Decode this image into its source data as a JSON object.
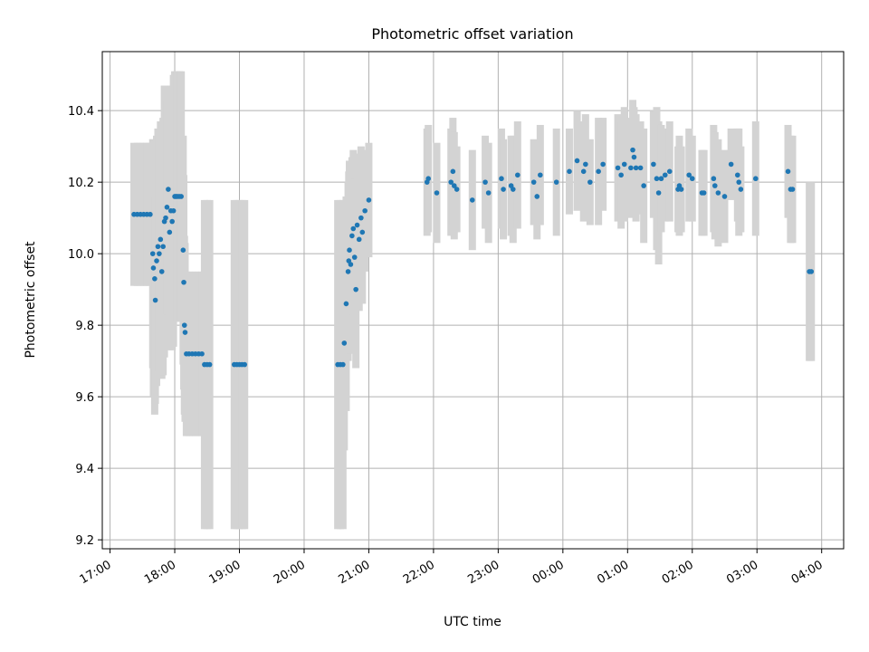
{
  "chart_data": {
    "type": "scatter",
    "title": "Photometric offset variation",
    "xlabel": "UTC time",
    "ylabel": "Photometric offset",
    "x_units": "hours since 17:00 UTC",
    "xlim": [
      -0.12,
      11.34
    ],
    "ylim": [
      9.175,
      10.565
    ],
    "xticks": [
      {
        "value": 0,
        "label": "17:00"
      },
      {
        "value": 1,
        "label": "18:00"
      },
      {
        "value": 2,
        "label": "19:00"
      },
      {
        "value": 3,
        "label": "20:00"
      },
      {
        "value": 4,
        "label": "21:00"
      },
      {
        "value": 5,
        "label": "22:00"
      },
      {
        "value": 6,
        "label": "23:00"
      },
      {
        "value": 7,
        "label": "00:00"
      },
      {
        "value": 8,
        "label": "01:00"
      },
      {
        "value": 9,
        "label": "02:00"
      },
      {
        "value": 10,
        "label": "03:00"
      },
      {
        "value": 11,
        "label": "04:00"
      }
    ],
    "yticks": [
      {
        "value": 9.2,
        "label": "9.2"
      },
      {
        "value": 9.4,
        "label": "9.4"
      },
      {
        "value": 9.6,
        "label": "9.6"
      },
      {
        "value": 9.8,
        "label": "9.8"
      },
      {
        "value": 10.0,
        "label": "10.0"
      },
      {
        "value": 10.2,
        "label": "10.2"
      },
      {
        "value": 10.4,
        "label": "10.4"
      }
    ],
    "grid": true,
    "colors": {
      "points": "#1f77b4",
      "errorbars": "#d3d3d3"
    },
    "series": [
      {
        "points": [
          {
            "x": 0.37,
            "y": 10.11,
            "err": 0.2
          },
          {
            "x": 0.42,
            "y": 10.11,
            "err": 0.2
          },
          {
            "x": 0.47,
            "y": 10.11,
            "err": 0.2
          },
          {
            "x": 0.52,
            "y": 10.11,
            "err": 0.2
          },
          {
            "x": 0.57,
            "y": 10.11,
            "err": 0.2
          },
          {
            "x": 0.62,
            "y": 10.11,
            "err": 0.2
          },
          {
            "x": 0.66,
            "y": 10.0,
            "err": 0.32
          },
          {
            "x": 0.67,
            "y": 9.96,
            "err": 0.36
          },
          {
            "x": 0.69,
            "y": 9.93,
            "err": 0.38
          },
          {
            "x": 0.7,
            "y": 9.87,
            "err": 0.29
          },
          {
            "x": 0.72,
            "y": 9.98,
            "err": 0.35
          },
          {
            "x": 0.74,
            "y": 10.02,
            "err": 0.33
          },
          {
            "x": 0.76,
            "y": 10.0,
            "err": 0.33
          },
          {
            "x": 0.78,
            "y": 10.04,
            "err": 0.33
          },
          {
            "x": 0.8,
            "y": 9.95,
            "err": 0.3
          },
          {
            "x": 0.82,
            "y": 10.02,
            "err": 0.36
          },
          {
            "x": 0.84,
            "y": 10.09,
            "err": 0.38
          },
          {
            "x": 0.86,
            "y": 10.1,
            "err": 0.35
          },
          {
            "x": 0.88,
            "y": 10.13,
            "err": 0.3
          },
          {
            "x": 0.9,
            "y": 10.18,
            "err": 0.25
          },
          {
            "x": 0.92,
            "y": 10.06,
            "err": 0.33
          },
          {
            "x": 0.94,
            "y": 10.12,
            "err": 0.35
          },
          {
            "x": 0.96,
            "y": 10.09,
            "err": 0.36
          },
          {
            "x": 0.98,
            "y": 10.12,
            "err": 0.38
          },
          {
            "x": 1.0,
            "y": 10.16,
            "err": 0.35
          },
          {
            "x": 1.02,
            "y": 10.16,
            "err": 0.35
          },
          {
            "x": 1.04,
            "y": 10.16,
            "err": 0.35
          },
          {
            "x": 1.07,
            "y": 10.16,
            "err": 0.35
          },
          {
            "x": 1.1,
            "y": 10.16,
            "err": 0.35
          },
          {
            "x": 1.13,
            "y": 10.01,
            "err": 0.32
          },
          {
            "x": 1.14,
            "y": 9.92,
            "err": 0.3
          },
          {
            "x": 1.15,
            "y": 9.8,
            "err": 0.25
          },
          {
            "x": 1.16,
            "y": 9.78,
            "err": 0.25
          },
          {
            "x": 1.18,
            "y": 9.72,
            "err": 0.23
          },
          {
            "x": 1.22,
            "y": 9.72,
            "err": 0.23
          },
          {
            "x": 1.27,
            "y": 9.72,
            "err": 0.23
          },
          {
            "x": 1.32,
            "y": 9.72,
            "err": 0.23
          },
          {
            "x": 1.37,
            "y": 9.72,
            "err": 0.23
          },
          {
            "x": 1.42,
            "y": 9.72,
            "err": 0.23
          },
          {
            "x": 1.46,
            "y": 9.69,
            "err": 0.46
          },
          {
            "x": 1.5,
            "y": 9.69,
            "err": 0.46
          },
          {
            "x": 1.54,
            "y": 9.69,
            "err": 0.46
          },
          {
            "x": 1.92,
            "y": 9.69,
            "err": 0.46
          },
          {
            "x": 1.96,
            "y": 9.69,
            "err": 0.46
          },
          {
            "x": 2.0,
            "y": 9.69,
            "err": 0.46
          },
          {
            "x": 2.04,
            "y": 9.69,
            "err": 0.46
          },
          {
            "x": 2.08,
            "y": 9.69,
            "err": 0.46
          },
          {
            "x": 3.52,
            "y": 9.69,
            "err": 0.46
          },
          {
            "x": 3.56,
            "y": 9.69,
            "err": 0.46
          },
          {
            "x": 3.6,
            "y": 9.69,
            "err": 0.46
          },
          {
            "x": 3.62,
            "y": 9.75,
            "err": 0.3
          },
          {
            "x": 3.65,
            "y": 9.86,
            "err": 0.3
          },
          {
            "x": 3.68,
            "y": 9.95,
            "err": 0.25
          },
          {
            "x": 3.69,
            "y": 9.98,
            "err": 0.25
          },
          {
            "x": 3.7,
            "y": 10.01,
            "err": 0.25
          },
          {
            "x": 3.72,
            "y": 9.97,
            "err": 0.25
          },
          {
            "x": 3.74,
            "y": 10.05,
            "err": 0.22
          },
          {
            "x": 3.76,
            "y": 10.07,
            "err": 0.22
          },
          {
            "x": 3.78,
            "y": 9.99,
            "err": 0.22
          },
          {
            "x": 3.8,
            "y": 9.9,
            "err": 0.22
          },
          {
            "x": 3.82,
            "y": 10.08,
            "err": 0.2
          },
          {
            "x": 3.85,
            "y": 10.04,
            "err": 0.2
          },
          {
            "x": 3.88,
            "y": 10.1,
            "err": 0.2
          },
          {
            "x": 3.9,
            "y": 10.06,
            "err": 0.2
          },
          {
            "x": 3.94,
            "y": 10.12,
            "err": 0.17
          },
          {
            "x": 4.0,
            "y": 10.15,
            "err": 0.16
          },
          {
            "x": 4.9,
            "y": 10.2,
            "err": 0.15
          },
          {
            "x": 4.92,
            "y": 10.21,
            "err": 0.15
          },
          {
            "x": 5.05,
            "y": 10.17,
            "err": 0.14
          },
          {
            "x": 5.27,
            "y": 10.2,
            "err": 0.15
          },
          {
            "x": 5.3,
            "y": 10.23,
            "err": 0.15
          },
          {
            "x": 5.32,
            "y": 10.19,
            "err": 0.15
          },
          {
            "x": 5.36,
            "y": 10.18,
            "err": 0.12
          },
          {
            "x": 5.6,
            "y": 10.15,
            "err": 0.14
          },
          {
            "x": 5.8,
            "y": 10.2,
            "err": 0.13
          },
          {
            "x": 5.85,
            "y": 10.17,
            "err": 0.14
          },
          {
            "x": 6.05,
            "y": 10.21,
            "err": 0.14
          },
          {
            "x": 6.08,
            "y": 10.18,
            "err": 0.14
          },
          {
            "x": 6.2,
            "y": 10.19,
            "err": 0.14
          },
          {
            "x": 6.23,
            "y": 10.18,
            "err": 0.15
          },
          {
            "x": 6.3,
            "y": 10.22,
            "err": 0.15
          },
          {
            "x": 6.55,
            "y": 10.2,
            "err": 0.12
          },
          {
            "x": 6.6,
            "y": 10.16,
            "err": 0.12
          },
          {
            "x": 6.65,
            "y": 10.22,
            "err": 0.14
          },
          {
            "x": 6.9,
            "y": 10.2,
            "err": 0.15
          },
          {
            "x": 7.1,
            "y": 10.23,
            "err": 0.12
          },
          {
            "x": 7.22,
            "y": 10.26,
            "err": 0.14
          },
          {
            "x": 7.32,
            "y": 10.23,
            "err": 0.14
          },
          {
            "x": 7.35,
            "y": 10.25,
            "err": 0.14
          },
          {
            "x": 7.42,
            "y": 10.2,
            "err": 0.12
          },
          {
            "x": 7.55,
            "y": 10.23,
            "err": 0.15
          },
          {
            "x": 7.62,
            "y": 10.25,
            "err": 0.13
          },
          {
            "x": 7.85,
            "y": 10.24,
            "err": 0.15
          },
          {
            "x": 7.9,
            "y": 10.22,
            "err": 0.15
          },
          {
            "x": 7.95,
            "y": 10.25,
            "err": 0.16
          },
          {
            "x": 8.05,
            "y": 10.24,
            "err": 0.14
          },
          {
            "x": 8.08,
            "y": 10.29,
            "err": 0.14
          },
          {
            "x": 8.1,
            "y": 10.27,
            "err": 0.14
          },
          {
            "x": 8.13,
            "y": 10.24,
            "err": 0.15
          },
          {
            "x": 8.2,
            "y": 10.24,
            "err": 0.13
          },
          {
            "x": 8.25,
            "y": 10.19,
            "err": 0.16
          },
          {
            "x": 8.4,
            "y": 10.25,
            "err": 0.15
          },
          {
            "x": 8.45,
            "y": 10.21,
            "err": 0.2
          },
          {
            "x": 8.48,
            "y": 10.17,
            "err": 0.2
          },
          {
            "x": 8.52,
            "y": 10.21,
            "err": 0.15
          },
          {
            "x": 8.58,
            "y": 10.22,
            "err": 0.13
          },
          {
            "x": 8.65,
            "y": 10.23,
            "err": 0.14
          },
          {
            "x": 8.78,
            "y": 10.18,
            "err": 0.12
          },
          {
            "x": 8.8,
            "y": 10.19,
            "err": 0.14
          },
          {
            "x": 8.83,
            "y": 10.18,
            "err": 0.12
          },
          {
            "x": 8.95,
            "y": 10.22,
            "err": 0.13
          },
          {
            "x": 9.0,
            "y": 10.21,
            "err": 0.12
          },
          {
            "x": 9.15,
            "y": 10.17,
            "err": 0.12
          },
          {
            "x": 9.18,
            "y": 10.17,
            "err": 0.12
          },
          {
            "x": 9.33,
            "y": 10.21,
            "err": 0.15
          },
          {
            "x": 9.35,
            "y": 10.19,
            "err": 0.15
          },
          {
            "x": 9.4,
            "y": 10.17,
            "err": 0.15
          },
          {
            "x": 9.5,
            "y": 10.16,
            "err": 0.13
          },
          {
            "x": 9.6,
            "y": 10.25,
            "err": 0.1
          },
          {
            "x": 9.7,
            "y": 10.22,
            "err": 0.13
          },
          {
            "x": 9.72,
            "y": 10.2,
            "err": 0.15
          },
          {
            "x": 9.75,
            "y": 10.18,
            "err": 0.12
          },
          {
            "x": 9.98,
            "y": 10.21,
            "err": 0.16
          },
          {
            "x": 10.48,
            "y": 10.23,
            "err": 0.13
          },
          {
            "x": 10.52,
            "y": 10.18,
            "err": 0.15
          },
          {
            "x": 10.55,
            "y": 10.18,
            "err": 0.15
          },
          {
            "x": 10.81,
            "y": 9.95,
            "err": 0.25
          },
          {
            "x": 10.84,
            "y": 9.95,
            "err": 0.25
          }
        ]
      }
    ]
  }
}
